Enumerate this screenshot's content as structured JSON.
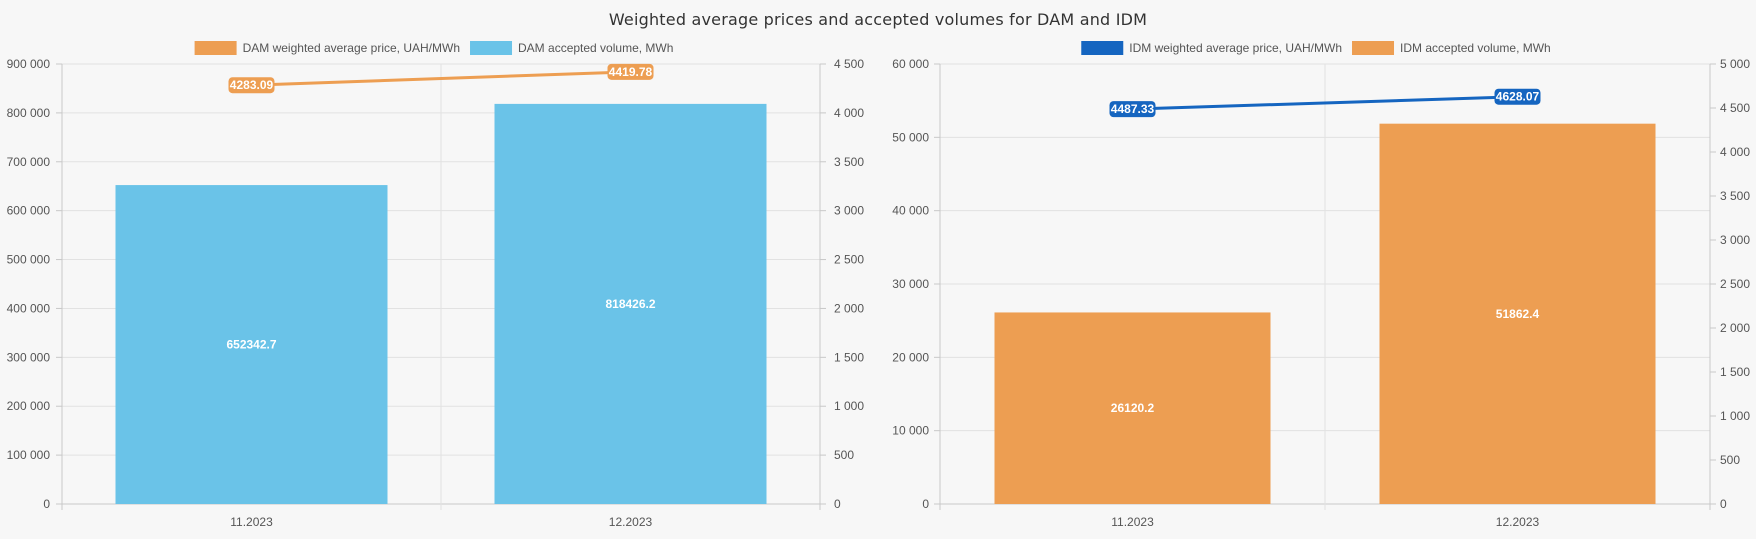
{
  "page": {
    "title": "Weighted average prices and accepted volumes for DAM and IDM"
  },
  "chart_data": [
    {
      "type": "bar",
      "categories": [
        "11.2023",
        "12.2023"
      ],
      "series": [
        {
          "name": "DAM weighted average price, UAH/MWh",
          "chart": "line",
          "axis": "right",
          "color": "#ED9E52",
          "values": [
            4283.09,
            4419.78
          ],
          "labels": [
            "4283.09",
            "4419.78"
          ]
        },
        {
          "name": "DAM accepted volume, MWh",
          "chart": "bar",
          "axis": "left",
          "color": "#6AC3E8",
          "values": [
            652342.7,
            818426.2
          ],
          "labels": [
            "652342.7",
            "818426.2"
          ]
        }
      ],
      "ylim_left": [
        0,
        900000
      ],
      "yticks_left": [
        0,
        100000,
        200000,
        300000,
        400000,
        500000,
        600000,
        700000,
        800000,
        900000
      ],
      "yticklabels_left": [
        "0",
        "100 000",
        "200 000",
        "300 000",
        "400 000",
        "500 000",
        "600 000",
        "700 000",
        "800 000",
        "900 000"
      ],
      "ylim_right": [
        0,
        4500
      ],
      "yticks_right": [
        0,
        500,
        1000,
        1500,
        2000,
        2500,
        3000,
        3500,
        4000,
        4500
      ],
      "yticklabels_right": [
        "0",
        "500",
        "1 000",
        "1 500",
        "2 000",
        "2 500",
        "3 000",
        "3 500",
        "4 000",
        "4 500"
      ],
      "grid": true,
      "legend_position": "top"
    },
    {
      "type": "bar",
      "categories": [
        "11.2023",
        "12.2023"
      ],
      "series": [
        {
          "name": "IDM weighted average price, UAH/MWh",
          "chart": "line",
          "axis": "right",
          "color": "#1565C0",
          "values": [
            4487.33,
            4628.07
          ],
          "labels": [
            "4487.33",
            "4628.07"
          ]
        },
        {
          "name": "IDM accepted volume, MWh",
          "chart": "bar",
          "axis": "left",
          "color": "#ED9E52",
          "values": [
            26120.2,
            51862.4
          ],
          "labels": [
            "26120.2",
            "51862.4"
          ]
        }
      ],
      "ylim_left": [
        0,
        60000
      ],
      "yticks_left": [
        0,
        10000,
        20000,
        30000,
        40000,
        50000,
        60000
      ],
      "yticklabels_left": [
        "0",
        "10 000",
        "20 000",
        "30 000",
        "40 000",
        "50 000",
        "60 000"
      ],
      "ylim_right": [
        0,
        5000
      ],
      "yticks_right": [
        0,
        500,
        1000,
        1500,
        2000,
        2500,
        3000,
        3500,
        4000,
        4500,
        5000
      ],
      "yticklabels_right": [
        "0",
        "500",
        "1 000",
        "1 500",
        "2 000",
        "2 500",
        "3 000",
        "3 500",
        "4 000",
        "4 500",
        "5 000"
      ],
      "grid": true,
      "legend_position": "top"
    }
  ]
}
